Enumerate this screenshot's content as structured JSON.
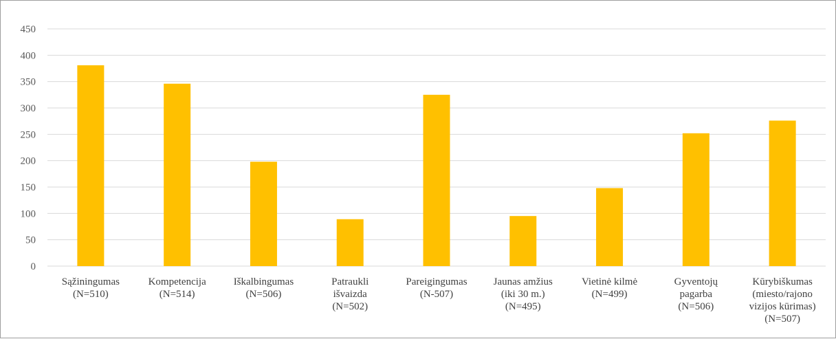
{
  "chart_data": {
    "type": "bar",
    "title": "",
    "xlabel": "",
    "ylabel": "",
    "ylim": [
      0,
      450
    ],
    "y_ticks": [
      0,
      50,
      100,
      150,
      200,
      250,
      300,
      350,
      400,
      450
    ],
    "grid": true,
    "legend": "none",
    "bar_color": "#FFC000",
    "categories": [
      [
        "Sąžiningumas",
        "(N=510)"
      ],
      [
        "Kompetencija",
        "(N=514)"
      ],
      [
        "Iškalbingumas",
        "(N=506)"
      ],
      [
        "Patraukli",
        "išvaizda",
        "(N=502)"
      ],
      [
        "Pareigingumas",
        "(N-507)"
      ],
      [
        "Jaunas amžius",
        "(iki 30 m.)",
        "(N=495)"
      ],
      [
        "Vietinė kilmė",
        "(N=499)"
      ],
      [
        "Gyventojų",
        "pagarba",
        "(N=506)"
      ],
      [
        "Kūrybiškumas",
        "(miesto/rajono",
        "vizijos kūrimas)",
        "(N=507)"
      ]
    ],
    "values": [
      381,
      346,
      198,
      89,
      325,
      95,
      148,
      252,
      276
    ]
  }
}
